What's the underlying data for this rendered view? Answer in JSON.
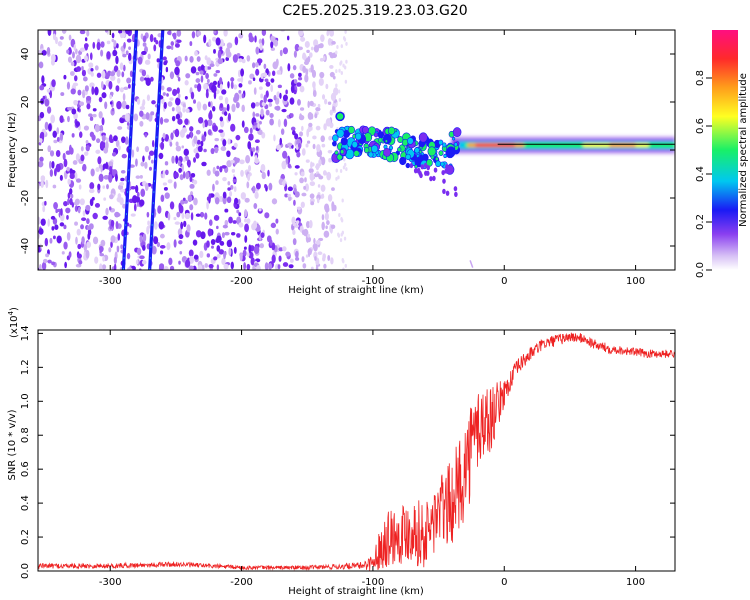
{
  "title": "C2E5.2025.319.23.03.G20",
  "chart_data": [
    {
      "type": "heatmap",
      "name": "spectrogram",
      "xlabel": "Height of straight line (km)",
      "ylabel": "Frequency (Hz)",
      "xlim": [
        -355,
        130
      ],
      "ylim": [
        -50,
        50
      ],
      "xticks": [
        -300,
        -200,
        -100,
        0,
        100
      ],
      "yticks": [
        -40,
        -20,
        0,
        20,
        40
      ],
      "noise_region_x": [
        -355,
        -128
      ],
      "signal_band_freq_hz": 2,
      "signal_band_x": [
        -130,
        130
      ],
      "streaks": [
        {
          "x_at_ymin": -290,
          "x_at_ymax": -280
        },
        {
          "x_at_ymin": -270,
          "x_at_ymax": -260
        }
      ],
      "colorbar": {
        "label": "Normalized spectral amplitude",
        "range": [
          0,
          1
        ],
        "ticks": [
          0.0,
          0.2,
          0.4,
          0.6,
          0.8
        ],
        "colors": [
          "#ffffff",
          "#c9a6f2",
          "#7a2df0",
          "#1a1af5",
          "#00c8f0",
          "#19f067",
          "#ffff22",
          "#ff9e1b",
          "#ff2a2a",
          "#ff0e80"
        ]
      }
    },
    {
      "type": "line",
      "name": "snr",
      "xlabel": "Height of straight line (km)",
      "ylabel": "SNR (10 * v/v)",
      "multiplier": "(x10",
      "multiplier_exp": "4",
      "multiplier_close": ")",
      "xlim": [
        -355,
        130
      ],
      "ylim": [
        0,
        1.42
      ],
      "xticks": [
        -300,
        -200,
        -100,
        0,
        100
      ],
      "yticks": [
        0.0,
        0.2,
        0.4,
        0.6,
        0.8,
        1.0,
        1.2,
        1.4
      ],
      "line_color": "#ee2222",
      "series": [
        {
          "name": "SNR",
          "x": [
            -355,
            -300,
            -250,
            -200,
            -150,
            -110,
            -100,
            -90,
            -80,
            -70,
            -60,
            -50,
            -40,
            -30,
            -20,
            -10,
            0,
            10,
            20,
            30,
            40,
            50,
            60,
            70,
            80,
            90,
            100,
            110,
            120,
            130
          ],
          "y": [
            0.03,
            0.03,
            0.04,
            0.02,
            0.02,
            0.03,
            0.05,
            0.2,
            0.22,
            0.25,
            0.2,
            0.35,
            0.4,
            0.6,
            0.85,
            0.9,
            1.05,
            1.2,
            1.28,
            1.34,
            1.36,
            1.38,
            1.37,
            1.33,
            1.31,
            1.3,
            1.29,
            1.28,
            1.28,
            1.28
          ],
          "noise": [
            0.015,
            0.015,
            0.015,
            0.012,
            0.012,
            0.02,
            0.05,
            0.18,
            0.18,
            0.2,
            0.2,
            0.22,
            0.25,
            0.3,
            0.28,
            0.2,
            0.08,
            0.05,
            0.04,
            0.035,
            0.035,
            0.03,
            0.03,
            0.03,
            0.03,
            0.025,
            0.025,
            0.025,
            0.025,
            0.025
          ]
        }
      ]
    }
  ]
}
